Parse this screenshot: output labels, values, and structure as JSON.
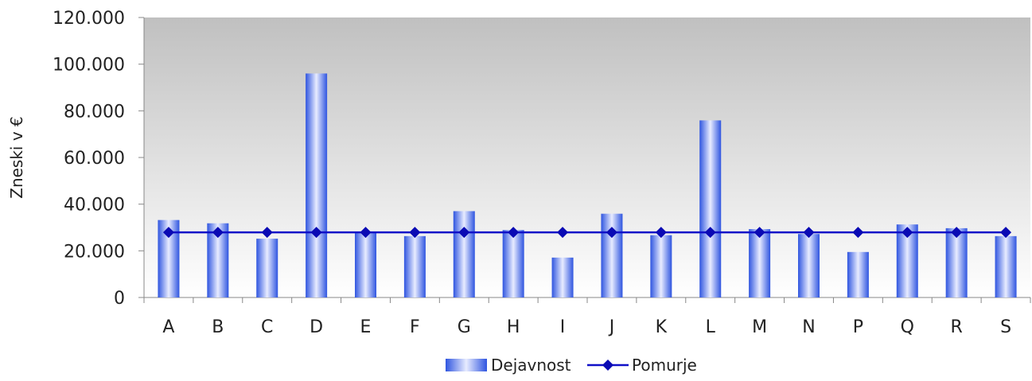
{
  "chart_data": {
    "type": "bar",
    "title": "",
    "xlabel": "",
    "ylabel": "Zneski v €",
    "ylim": [
      0,
      120000
    ],
    "yticks": [
      0,
      20000,
      40000,
      60000,
      80000,
      100000,
      120000
    ],
    "ytick_labels": [
      "0",
      "20.000",
      "40.000",
      "60.000",
      "80.000",
      "100.000",
      "120.000"
    ],
    "categories": [
      "A",
      "B",
      "C",
      "D",
      "E",
      "F",
      "G",
      "H",
      "I",
      "J",
      "K",
      "L",
      "M",
      "N",
      "P",
      "Q",
      "R",
      "S"
    ],
    "series": [
      {
        "name": "Dejavnost",
        "type": "bar",
        "values": [
          33200,
          31800,
          25200,
          96000,
          27900,
          26300,
          37000,
          28900,
          17100,
          35900,
          26700,
          75900,
          29300,
          27200,
          19500,
          31300,
          29700,
          26300
        ]
      },
      {
        "name": "Pomurje",
        "type": "line",
        "values": [
          27900,
          27900,
          27900,
          27900,
          27900,
          27900,
          27900,
          27900,
          27900,
          27900,
          27900,
          27900,
          27900,
          27900,
          27900,
          27900,
          27900,
          27900
        ]
      }
    ],
    "legend_position": "bottom-center",
    "grid": false,
    "colors": {
      "bar_dark": "#2f55e0",
      "bar_light": "#e8ecff",
      "line": "#1010c8",
      "marker": "#0a0ab4",
      "plot_bg_top": "#c0c0c0",
      "plot_bg_bottom": "#ffffff"
    }
  }
}
